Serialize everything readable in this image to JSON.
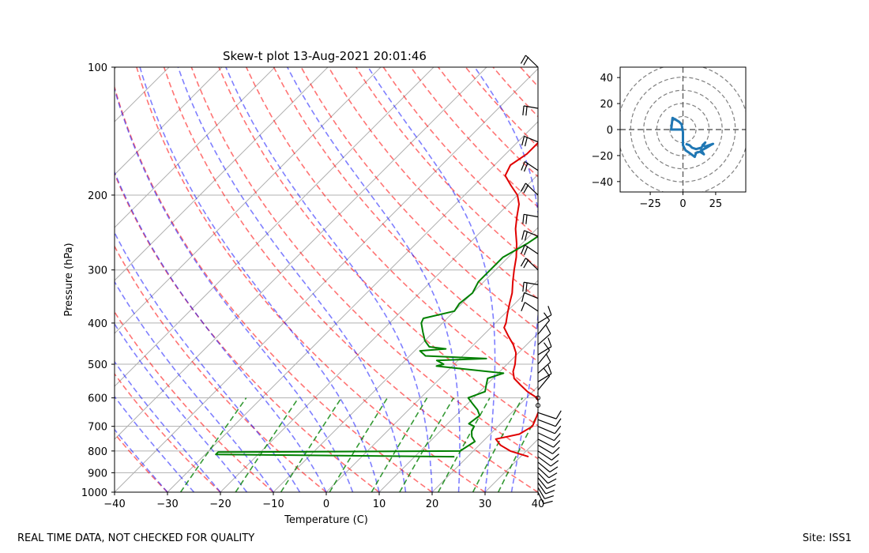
{
  "chart_data": [
    {
      "type": "line",
      "subtype": "skew-t",
      "title": "Skew-t plot 13-Aug-2021 20:01:46",
      "xlabel": "Temperature (C)",
      "ylabel": "Pressure (hPa)",
      "xlim": [
        -40,
        40
      ],
      "ylim": [
        1000,
        100
      ],
      "x_ticks": [
        -40,
        -30,
        -20,
        -10,
        0,
        10,
        20,
        30,
        40
      ],
      "y_ticks": [
        100,
        200,
        300,
        400,
        500,
        600,
        700,
        800,
        900,
        1000
      ],
      "grid": true,
      "series": [
        {
          "name": "Temperature",
          "color": "#e00000",
          "points": [
            [
              825,
              31.5
            ],
            [
              800,
              27
            ],
            [
              775,
              24
            ],
            [
              750,
              22
            ],
            [
              730,
              25.5
            ],
            [
              700,
              26.5
            ],
            [
              675,
              25.8
            ],
            [
              650,
              25
            ],
            [
              625,
              24
            ],
            [
              600,
              22
            ],
            [
              580,
              19
            ],
            [
              560,
              16.5
            ],
            [
              540,
              14
            ],
            [
              520,
              12.5
            ],
            [
              500,
              11.5
            ],
            [
              470,
              9.5
            ],
            [
              450,
              7.5
            ],
            [
              430,
              5
            ],
            [
              410,
              2.5
            ],
            [
              400,
              2
            ],
            [
              380,
              0.5
            ],
            [
              360,
              -1
            ],
            [
              340,
              -2.5
            ],
            [
              320,
              -4.5
            ],
            [
              300,
              -6.5
            ],
            [
              280,
              -8.5
            ],
            [
              260,
              -11
            ],
            [
              240,
              -14
            ],
            [
              225,
              -16
            ],
            [
              210,
              -18
            ],
            [
              200,
              -20
            ],
            [
              190,
              -23
            ],
            [
              180,
              -26
            ],
            [
              170,
              -27
            ],
            [
              160,
              -26
            ],
            [
              150,
              -26
            ],
            [
              140,
              -26
            ],
            [
              130,
              -28
            ],
            [
              120,
              -30
            ],
            [
              115,
              -33
            ],
            [
              110,
              -36
            ],
            [
              105,
              -36
            ],
            [
              100,
              -38
            ]
          ]
        },
        {
          "name": "Dewpoint",
          "color": "#008000",
          "points": [
            [
              825,
              17.5
            ],
            [
              815,
              -28
            ],
            [
              805,
              -28
            ],
            [
              800,
              17.5
            ],
            [
              780,
              18
            ],
            [
              760,
              18.5
            ],
            [
              740,
              17
            ],
            [
              720,
              16
            ],
            [
              700,
              15.5
            ],
            [
              690,
              14
            ],
            [
              660,
              14.5
            ],
            [
              640,
              13
            ],
            [
              620,
              11
            ],
            [
              600,
              9
            ],
            [
              580,
              11
            ],
            [
              560,
              10
            ],
            [
              540,
              9
            ],
            [
              525,
              11
            ],
            [
              505,
              -3
            ],
            [
              500,
              -2
            ],
            [
              490,
              -4
            ],
            [
              485,
              5
            ],
            [
              478,
              -7
            ],
            [
              465,
              -9
            ],
            [
              460,
              -4.5
            ],
            [
              455,
              -8
            ],
            [
              440,
              -10
            ],
            [
              420,
              -12
            ],
            [
              400,
              -14
            ],
            [
              390,
              -14.5
            ],
            [
              375,
              -10
            ],
            [
              360,
              -10.5
            ],
            [
              340,
              -10
            ],
            [
              320,
              -11
            ],
            [
              300,
              -11
            ],
            [
              280,
              -11
            ],
            [
              260,
              -9
            ],
            [
              245,
              -8
            ],
            [
              230,
              -7
            ],
            [
              220,
              -8
            ],
            [
              210,
              -8
            ],
            [
              200,
              -6
            ],
            [
              190,
              -6
            ],
            [
              180,
              -7
            ],
            [
              170,
              -8
            ],
            [
              160,
              -9
            ],
            [
              150,
              -11
            ],
            [
              140,
              -13
            ],
            [
              130,
              -13
            ],
            [
              120,
              -12
            ],
            [
              110,
              -10
            ],
            [
              100,
              -9
            ]
          ]
        }
      ],
      "reference_lines": {
        "dry_adiabats_color": "#ff0000",
        "moist_adiabats_color": "#0000ff",
        "mixing_ratio_color": "#008000",
        "isotherm_color": "#808080"
      },
      "wind_barbs": "shown along right edge from 1000 to 100 hPa"
    },
    {
      "type": "line",
      "subtype": "hodograph",
      "color": "#1f77b4",
      "x_ticks": [
        -25,
        0,
        25
      ],
      "y_ticks": [
        40,
        20,
        0,
        -20,
        -40
      ],
      "xlim": [
        -48,
        48
      ],
      "ylim": [
        -48,
        48
      ],
      "range_rings": [
        10,
        20,
        30,
        40,
        50
      ],
      "points": [
        [
          0,
          0
        ],
        [
          -5,
          0
        ],
        [
          -9,
          0
        ],
        [
          -8,
          9
        ],
        [
          -3,
          6
        ],
        [
          -1,
          4
        ],
        [
          0,
          -2
        ],
        [
          0,
          -12
        ],
        [
          2,
          -16
        ],
        [
          5,
          -18
        ],
        [
          9,
          -21
        ],
        [
          10,
          -18
        ],
        [
          13,
          -17
        ],
        [
          16,
          -19
        ],
        [
          14,
          -16
        ],
        [
          18,
          -14
        ],
        [
          21,
          -12
        ],
        [
          23,
          -11
        ],
        [
          17,
          -13
        ],
        [
          15,
          -12
        ],
        [
          17,
          -10
        ],
        [
          14,
          -14
        ],
        [
          10,
          -15
        ],
        [
          7,
          -14
        ],
        [
          5,
          -12
        ],
        [
          2,
          -11
        ]
      ]
    }
  ],
  "footer": {
    "left": "REAL TIME DATA, NOT CHECKED FOR QUALITY",
    "right": "Site: ISS1"
  }
}
